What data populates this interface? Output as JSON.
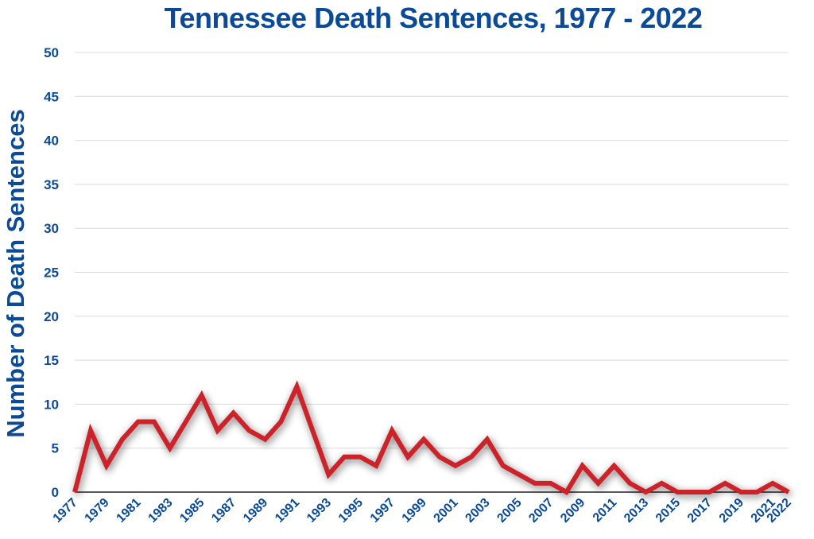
{
  "chart_data": {
    "type": "line",
    "title": "Tennessee Death Sentences, 1977 - 2022",
    "xlabel": "",
    "ylabel": "Number of Death Sentences",
    "ylim": [
      0,
      50
    ],
    "yticks": [
      "0",
      "5",
      "10",
      "15",
      "20",
      "25",
      "30",
      "35",
      "40",
      "45",
      "50"
    ],
    "xtick_labels": [
      "1977",
      "1979",
      "1981",
      "1983",
      "1985",
      "1987",
      "1989",
      "1991",
      "1993",
      "1995",
      "1997",
      "1999",
      "2001",
      "2003",
      "2005",
      "2007",
      "2009",
      "2011",
      "2013",
      "2015",
      "2017",
      "2019",
      "2021",
      "2022"
    ],
    "grid": true,
    "legend": "none",
    "line_color": "#cc2229",
    "text_color": "#0b4a97",
    "x": [
      1977,
      1978,
      1979,
      1980,
      1981,
      1982,
      1983,
      1984,
      1985,
      1986,
      1987,
      1988,
      1989,
      1990,
      1991,
      1992,
      1993,
      1994,
      1995,
      1996,
      1997,
      1998,
      1999,
      2000,
      2001,
      2002,
      2003,
      2004,
      2005,
      2006,
      2007,
      2008,
      2009,
      2010,
      2011,
      2012,
      2013,
      2014,
      2015,
      2016,
      2017,
      2018,
      2019,
      2020,
      2021,
      2022
    ],
    "series": [
      {
        "values": [
          0,
          7,
          3,
          6,
          8,
          8,
          5,
          8,
          11,
          7,
          9,
          7,
          6,
          8,
          12,
          7,
          2,
          4,
          4,
          3,
          7,
          4,
          6,
          4,
          3,
          4,
          6,
          3,
          2,
          1,
          1,
          0,
          3,
          1,
          3,
          1,
          0,
          1,
          0,
          0,
          0,
          1,
          0,
          0,
          1,
          0
        ]
      }
    ]
  }
}
